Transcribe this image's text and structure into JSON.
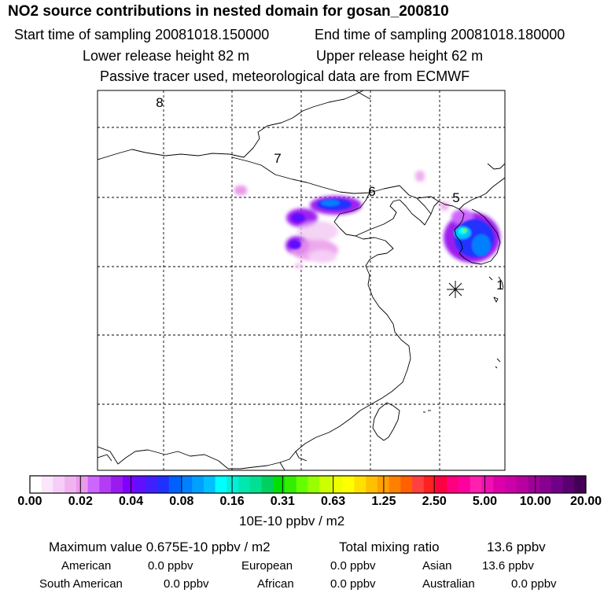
{
  "header": {
    "title": "NO2 source contributions in nested domain for gosan_200810",
    "start_time": "Start time of sampling 20081018.150000",
    "end_time": "End time of sampling 20081018.180000",
    "lower_release": "Lower release height   82 m",
    "upper_release": "Upper release height   62 m",
    "tracer_info": "Passive tracer used, meteorological data are from ECMWF"
  },
  "map": {
    "region_labels": [
      "8",
      "7",
      "6",
      "5",
      "1"
    ],
    "receptor_marker": "asterisk-icon"
  },
  "colorbar": {
    "tick_labels": [
      "0.00",
      "0.02",
      "0.04",
      "0.08",
      "0.16",
      "0.31",
      "0.63",
      "1.25",
      "2.50",
      "5.00",
      "10.00",
      "20.00"
    ],
    "colors": [
      "#ffffff",
      "#fbe6fb",
      "#f6cdf6",
      "#f0b3f0",
      "#ea9aea",
      "#cc66ff",
      "#b43cf4",
      "#9b1af0",
      "#8000ff",
      "#6010ff",
      "#4020ff",
      "#2030ff",
      "#0060ff",
      "#0080ff",
      "#00a0ff",
      "#00c0ff",
      "#00ffff",
      "#00f0d8",
      "#00e8b0",
      "#00e090",
      "#00d060",
      "#00e000",
      "#33ee00",
      "#66ff00",
      "#99ff00",
      "#ccff00",
      "#eeff00",
      "#ffff00",
      "#ffe000",
      "#ffc000",
      "#ffa000",
      "#ff8000",
      "#ff6000",
      "#ff4040",
      "#ff2020",
      "#ff0040",
      "#ff0080",
      "#ff00a0",
      "#ff20b0",
      "#ee10b0",
      "#dd00aa",
      "#cc00a8",
      "#b800a0",
      "#a00098",
      "#880090",
      "#700088",
      "#5a0070",
      "#440055"
    ],
    "unit": "10E-10 ppbv / m2"
  },
  "footer": {
    "max_value": "Maximum value  0.675E-10 ppbv / m2",
    "total_mixing": "Total mixing ratio",
    "total_value": "13.6 ppbv",
    "regions": [
      {
        "name": "American",
        "value": "0.0 ppbv"
      },
      {
        "name": "European",
        "value": "0.0 ppbv"
      },
      {
        "name": "Asian",
        "value": "13.6 ppbv"
      },
      {
        "name": "South American",
        "value": "0.0 ppbv"
      },
      {
        "name": "African",
        "value": "0.0 ppbv"
      },
      {
        "name": "Australian",
        "value": "0.0 ppbv"
      }
    ]
  }
}
